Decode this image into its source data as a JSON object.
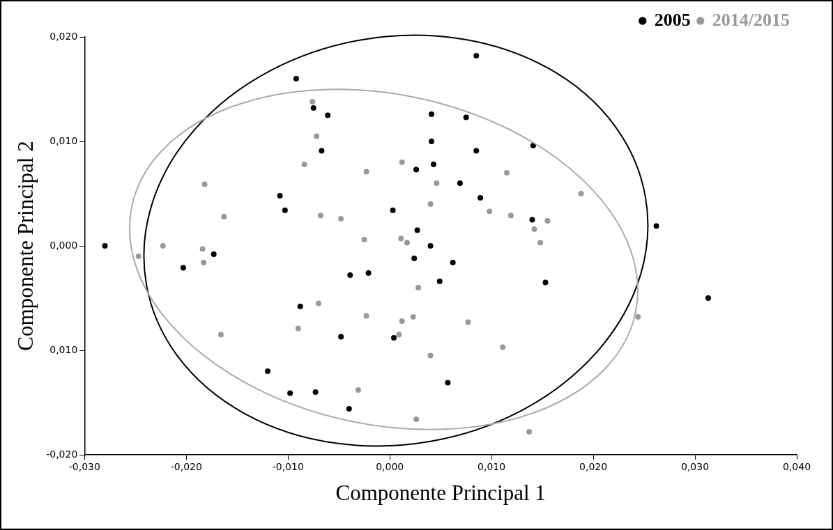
{
  "chart_data": {
    "type": "scatter",
    "xlabel": "Componente Principal 1",
    "ylabel": "Componente Principal 2",
    "xlim": [
      -0.03,
      0.04
    ],
    "ylim": [
      -0.02,
      0.02
    ],
    "xticks": [
      {
        "value": -0.03,
        "label": "-0,030"
      },
      {
        "value": -0.02,
        "label": "-0,020"
      },
      {
        "value": -0.01,
        "label": "-0,010"
      },
      {
        "value": 0,
        "label": "0,000"
      },
      {
        "value": 0.01,
        "label": "0,010"
      },
      {
        "value": 0.02,
        "label": "0,020"
      },
      {
        "value": 0.03,
        "label": "0,030"
      },
      {
        "value": 0.04,
        "label": "0,040"
      }
    ],
    "yticks": [
      {
        "value": -0.02,
        "label": "-0,020"
      },
      {
        "value": -0.01,
        "label": "0,010"
      },
      {
        "value": 0,
        "label": "0,000"
      },
      {
        "value": 0.01,
        "label": "0,010"
      },
      {
        "value": 0.02,
        "label": "0,020"
      }
    ],
    "grid": false,
    "legend": "top right",
    "marker": "circle",
    "series": [
      {
        "name": "2005",
        "color": "#000000",
        "x": [
          -0.028,
          -0.0203,
          -0.0173,
          -0.012,
          -0.0098,
          -0.0092,
          -0.0108,
          -0.0103,
          -0.0075,
          -0.0088,
          -0.0073,
          -0.0061,
          -0.0067,
          -0.0039,
          -0.004,
          -0.0021,
          -0.0048,
          0.0003,
          0.0004,
          0.0026,
          0.0027,
          0.0024,
          0.004,
          0.0041,
          0.0041,
          0.0043,
          0.0049,
          0.0057,
          0.0062,
          0.0069,
          0.0075,
          0.0085,
          0.0085,
          0.0089,
          0.0141,
          0.014,
          0.0153,
          0.0262,
          0.0313
        ],
        "values": [
          0.0,
          -0.0021,
          -0.0008,
          -0.012,
          -0.0141,
          0.016,
          0.0048,
          0.0034,
          0.0132,
          -0.0058,
          -0.014,
          0.0125,
          0.0091,
          -0.0028,
          -0.0156,
          -0.0026,
          -0.0087,
          0.0034,
          -0.0088,
          0.0073,
          0.0015,
          -0.0012,
          0.0,
          0.01,
          0.0126,
          0.0078,
          -0.0034,
          -0.0131,
          -0.0016,
          0.006,
          0.0123,
          0.0182,
          0.0091,
          0.0046,
          0.0096,
          0.0025,
          -0.0035,
          0.0019,
          -0.005
        ]
      },
      {
        "name": "2014/2015",
        "color": "#999999",
        "x": [
          -0.0247,
          -0.0223,
          -0.0184,
          -0.0183,
          -0.0182,
          -0.0163,
          -0.0166,
          -0.0084,
          -0.009,
          -0.0076,
          -0.0072,
          -0.0068,
          -0.007,
          -0.0048,
          -0.0025,
          -0.0031,
          -0.0023,
          -0.0023,
          0.0012,
          0.0011,
          0.0017,
          0.0012,
          0.0009,
          0.0023,
          0.0028,
          0.004,
          0.0046,
          0.004,
          0.0026,
          0.0077,
          0.0098,
          0.0115,
          0.0119,
          0.0111,
          0.0142,
          0.0148,
          0.0155,
          0.0188,
          0.0244,
          0.0137
        ],
        "values": [
          -0.001,
          0.0,
          -0.0003,
          -0.0016,
          0.0059,
          0.0028,
          -0.0085,
          0.0078,
          -0.0079,
          0.0138,
          0.0105,
          0.0029,
          -0.0055,
          0.0026,
          0.0006,
          -0.0138,
          0.0071,
          -0.0067,
          0.008,
          0.0007,
          0.0003,
          -0.0072,
          -0.0085,
          -0.0068,
          -0.004,
          0.004,
          0.006,
          -0.0105,
          -0.0166,
          -0.0073,
          0.0033,
          0.007,
          0.0029,
          -0.0097,
          0.0016,
          0.0003,
          0.0024,
          0.005,
          -0.0068,
          -0.0178
        ]
      }
    ]
  }
}
